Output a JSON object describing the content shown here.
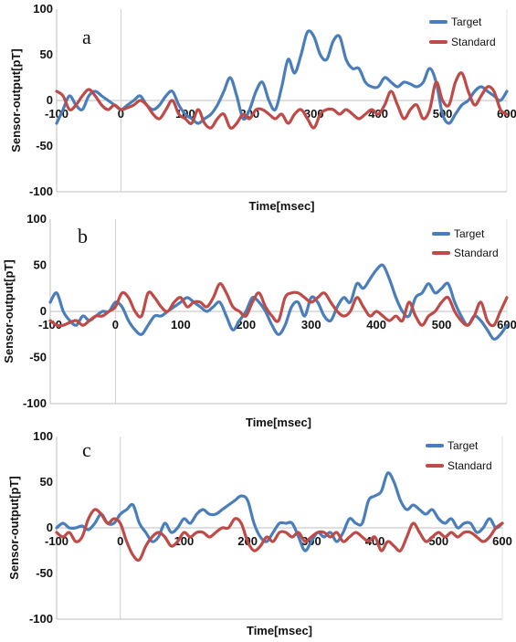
{
  "chart_data": [
    {
      "type": "line",
      "panel_label": "a",
      "xlabel": "Time[msec]",
      "ylabel": "Sensor-output[pT]",
      "xlim": [
        -100,
        600
      ],
      "ylim": [
        -100,
        100
      ],
      "xticks": [
        "-100",
        "0",
        "100",
        "200",
        "300",
        "400",
        "500",
        "600"
      ],
      "yticks": [
        "100",
        "50",
        "0",
        "-50",
        "-100"
      ],
      "legend": "top-right",
      "series": [
        {
          "name": "Target",
          "color": "#4a7ebb",
          "x": [
            -100,
            -90,
            -80,
            -70,
            -60,
            -50,
            -40,
            -30,
            -20,
            -10,
            0,
            10,
            20,
            30,
            40,
            50,
            60,
            70,
            80,
            90,
            100,
            110,
            120,
            130,
            140,
            150,
            160,
            170,
            180,
            190,
            200,
            210,
            220,
            230,
            240,
            250,
            260,
            270,
            280,
            290,
            300,
            310,
            320,
            330,
            340,
            350,
            360,
            370,
            380,
            390,
            400,
            410,
            420,
            430,
            440,
            450,
            460,
            470,
            480,
            490,
            500,
            510,
            520,
            530,
            540,
            550,
            560,
            570,
            580,
            590,
            600
          ],
          "y": [
            -25,
            -10,
            5,
            -5,
            -10,
            5,
            10,
            5,
            0,
            -5,
            -10,
            -5,
            0,
            5,
            -5,
            -10,
            -5,
            5,
            10,
            -5,
            -15,
            -20,
            -25,
            -20,
            -15,
            -5,
            10,
            25,
            5,
            -20,
            -10,
            10,
            20,
            0,
            -10,
            15,
            45,
            30,
            50,
            75,
            70,
            50,
            45,
            65,
            70,
            45,
            35,
            35,
            20,
            15,
            15,
            25,
            20,
            15,
            20,
            18,
            15,
            20,
            35,
            20,
            -15,
            -25,
            -15,
            -5,
            0,
            10,
            15,
            10,
            5,
            0,
            10
          ]
        },
        {
          "name": "Standard",
          "color": "#be4b48",
          "x": [
            -100,
            -90,
            -80,
            -70,
            -60,
            -50,
            -40,
            -30,
            -20,
            -10,
            0,
            10,
            20,
            30,
            40,
            50,
            60,
            70,
            80,
            90,
            100,
            110,
            120,
            130,
            140,
            150,
            160,
            170,
            180,
            190,
            200,
            210,
            220,
            230,
            240,
            250,
            260,
            270,
            280,
            290,
            300,
            310,
            320,
            330,
            340,
            350,
            360,
            370,
            380,
            390,
            400,
            410,
            420,
            430,
            440,
            450,
            460,
            470,
            480,
            490,
            500,
            510,
            520,
            530,
            540,
            550,
            560,
            570,
            580,
            590,
            600
          ],
          "y": [
            10,
            5,
            -10,
            -5,
            5,
            12,
            5,
            -5,
            -10,
            -5,
            -10,
            -8,
            -5,
            0,
            -5,
            -15,
            -20,
            -10,
            0,
            -15,
            -20,
            -25,
            -10,
            -25,
            -30,
            -20,
            -15,
            -30,
            -25,
            -15,
            -20,
            -10,
            -10,
            -15,
            -20,
            -15,
            -25,
            -15,
            -10,
            -20,
            -30,
            -15,
            -10,
            -10,
            -15,
            -10,
            -15,
            -20,
            -15,
            -10,
            -15,
            -5,
            10,
            -5,
            -20,
            -10,
            -5,
            -20,
            -10,
            20,
            0,
            -5,
            20,
            30,
            10,
            -5,
            5,
            15,
            10,
            -10,
            -15
          ]
        }
      ]
    },
    {
      "type": "line",
      "panel_label": "b",
      "xlabel": "Time[msec]",
      "ylabel": "Sensor-output[pT]",
      "xlim": [
        -100,
        600
      ],
      "ylim": [
        -100,
        100
      ],
      "xticks": [
        "-100",
        "0",
        "100",
        "200",
        "300",
        "400",
        "500",
        "600"
      ],
      "yticks": [
        "100",
        "50",
        "0",
        "-50",
        "-100"
      ],
      "legend": "top-right",
      "series": [
        {
          "name": "Target",
          "color": "#4a7ebb",
          "x": [
            -100,
            -90,
            -80,
            -70,
            -60,
            -50,
            -40,
            -30,
            -20,
            -10,
            0,
            10,
            20,
            30,
            40,
            50,
            60,
            70,
            80,
            90,
            100,
            110,
            120,
            130,
            140,
            150,
            160,
            170,
            180,
            190,
            200,
            210,
            220,
            230,
            240,
            250,
            260,
            270,
            280,
            290,
            300,
            310,
            320,
            330,
            340,
            350,
            360,
            370,
            380,
            390,
            400,
            410,
            420,
            430,
            440,
            450,
            460,
            470,
            480,
            490,
            500,
            510,
            520,
            530,
            540,
            550,
            560,
            570,
            580,
            590,
            600
          ],
          "y": [
            10,
            20,
            0,
            -10,
            -15,
            -5,
            -10,
            -5,
            0,
            0,
            10,
            5,
            -10,
            -20,
            -25,
            -15,
            -5,
            -5,
            0,
            5,
            10,
            15,
            10,
            5,
            0,
            5,
            10,
            -5,
            -20,
            -10,
            0,
            15,
            10,
            0,
            -15,
            -25,
            -15,
            5,
            10,
            -5,
            15,
            10,
            -5,
            -10,
            5,
            15,
            10,
            30,
            25,
            35,
            45,
            50,
            35,
            15,
            0,
            -5,
            15,
            20,
            30,
            20,
            25,
            30,
            10,
            -5,
            -15,
            -5,
            -10,
            -20,
            -30,
            -25,
            -15
          ]
        },
        {
          "name": "Standard",
          "color": "#be4b48",
          "x": [
            -100,
            -90,
            -80,
            -70,
            -60,
            -50,
            -40,
            -30,
            -20,
            -10,
            0,
            10,
            20,
            30,
            40,
            50,
            60,
            70,
            80,
            90,
            100,
            110,
            120,
            130,
            140,
            150,
            160,
            170,
            180,
            190,
            200,
            210,
            220,
            230,
            240,
            250,
            260,
            270,
            280,
            290,
            300,
            310,
            320,
            330,
            340,
            350,
            360,
            370,
            380,
            390,
            400,
            410,
            420,
            430,
            440,
            450,
            460,
            470,
            480,
            490,
            500,
            510,
            520,
            530,
            540,
            550,
            560,
            570,
            580,
            590,
            600
          ],
          "y": [
            -10,
            -15,
            -15,
            -12,
            -10,
            -15,
            -10,
            -5,
            -5,
            0,
            5,
            20,
            15,
            0,
            -5,
            20,
            15,
            5,
            0,
            10,
            15,
            5,
            10,
            10,
            5,
            15,
            30,
            20,
            5,
            0,
            -5,
            10,
            20,
            5,
            -5,
            -10,
            15,
            20,
            20,
            15,
            10,
            15,
            20,
            10,
            0,
            -5,
            0,
            15,
            5,
            -5,
            0,
            -5,
            -10,
            -5,
            -10,
            10,
            -5,
            -15,
            -5,
            0,
            10,
            15,
            0,
            -10,
            -15,
            -5,
            10,
            -10,
            -15,
            0,
            15
          ]
        }
      ]
    },
    {
      "type": "line",
      "panel_label": "c",
      "xlabel": "Time[msec]",
      "ylabel": "Sensor-output[pT]",
      "xlim": [
        -100,
        600
      ],
      "ylim": [
        -100,
        100
      ],
      "xticks": [
        "-100",
        "0",
        "100",
        "200",
        "300",
        "400",
        "500",
        "600"
      ],
      "yticks": [
        "100",
        "50",
        "0",
        "-50",
        "-100"
      ],
      "legend": "top-right",
      "series": [
        {
          "name": "Target",
          "color": "#4a7ebb",
          "x": [
            -100,
            -90,
            -80,
            -70,
            -60,
            -50,
            -40,
            -30,
            -20,
            -10,
            0,
            10,
            20,
            30,
            40,
            50,
            60,
            70,
            80,
            90,
            100,
            110,
            120,
            130,
            140,
            150,
            160,
            170,
            180,
            190,
            200,
            210,
            220,
            230,
            240,
            250,
            260,
            270,
            280,
            290,
            300,
            310,
            320,
            330,
            340,
            350,
            360,
            370,
            380,
            390,
            400,
            410,
            420,
            430,
            440,
            450,
            460,
            470,
            480,
            490,
            500,
            510,
            520,
            530,
            540,
            550,
            560,
            570,
            580,
            590,
            600
          ],
          "y": [
            0,
            5,
            0,
            0,
            2,
            -2,
            5,
            15,
            5,
            5,
            15,
            20,
            25,
            5,
            -5,
            -15,
            -10,
            5,
            -5,
            0,
            10,
            5,
            15,
            20,
            15,
            15,
            20,
            25,
            30,
            35,
            30,
            5,
            -10,
            -15,
            -5,
            5,
            5,
            5,
            -10,
            -25,
            -15,
            -5,
            -10,
            -5,
            -15,
            -5,
            10,
            5,
            5,
            30,
            35,
            40,
            60,
            50,
            30,
            20,
            25,
            20,
            15,
            20,
            10,
            5,
            10,
            0,
            5,
            5,
            -5,
            0,
            10,
            0,
            5
          ]
        },
        {
          "name": "Standard",
          "color": "#be4b48",
          "x": [
            -100,
            -90,
            -80,
            -70,
            -60,
            -50,
            -40,
            -30,
            -20,
            -10,
            0,
            10,
            20,
            30,
            40,
            50,
            60,
            70,
            80,
            90,
            100,
            110,
            120,
            130,
            140,
            150,
            160,
            170,
            180,
            190,
            200,
            210,
            220,
            230,
            240,
            250,
            260,
            270,
            280,
            290,
            300,
            310,
            320,
            330,
            340,
            350,
            360,
            370,
            380,
            390,
            400,
            410,
            420,
            430,
            440,
            450,
            460,
            470,
            480,
            490,
            500,
            510,
            520,
            530,
            540,
            550,
            560,
            570,
            580,
            590,
            600
          ],
          "y": [
            -5,
            -10,
            -5,
            -15,
            -10,
            10,
            20,
            15,
            5,
            10,
            5,
            -15,
            -30,
            -35,
            -20,
            -10,
            -5,
            -10,
            -20,
            -15,
            -5,
            -10,
            -5,
            -5,
            -10,
            -5,
            0,
            0,
            10,
            5,
            -15,
            -25,
            -20,
            -10,
            -15,
            -5,
            -5,
            -10,
            -5,
            -15,
            -10,
            -5,
            -5,
            -10,
            -5,
            -15,
            -10,
            -5,
            -10,
            -15,
            -10,
            -25,
            -15,
            -20,
            -25,
            -10,
            5,
            -5,
            -15,
            -10,
            -5,
            -10,
            -5,
            -10,
            -5,
            -5,
            -10,
            -15,
            -10,
            0,
            5
          ]
        }
      ]
    }
  ]
}
